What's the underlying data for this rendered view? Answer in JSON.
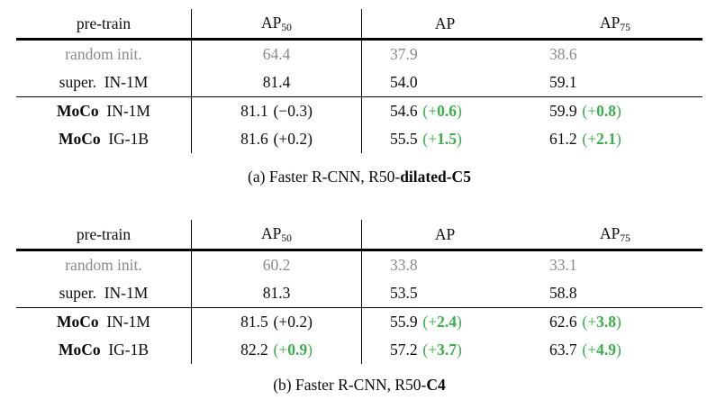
{
  "colors": {
    "green": "#3aae4c",
    "gray": "#8a8a8e",
    "rule": "#000000",
    "background": "#ffffff"
  },
  "header": {
    "pretrain": "pre-train",
    "ap50": {
      "base": "AP",
      "sub": "50"
    },
    "ap": {
      "base": "AP",
      "sub": ""
    },
    "ap75": {
      "base": "AP",
      "sub": "75"
    }
  },
  "tables": [
    {
      "id": "a",
      "caption": {
        "prefix": "(a) Faster R-CNN, R50-",
        "bold": "dilated-C5"
      },
      "rows": [
        {
          "label": {
            "bold": "",
            "rest": "random init."
          },
          "gray": true,
          "group_rule": false,
          "cells": [
            {
              "v": "64.4"
            },
            {
              "v": "37.9"
            },
            {
              "v": "38.6"
            }
          ]
        },
        {
          "label": {
            "bold": "",
            "rest": "super. IN-1M"
          },
          "gray": false,
          "group_rule": false,
          "cells": [
            {
              "v": "81.4"
            },
            {
              "v": "54.0"
            },
            {
              "v": "59.1"
            }
          ]
        },
        {
          "label": {
            "bold": "MoCo",
            "rest": " IN-1M"
          },
          "gray": false,
          "group_rule": true,
          "cells": [
            {
              "v": "81.1",
              "sign": "−",
              "delta": "0.3",
              "green": false
            },
            {
              "v": "54.6",
              "sign": "+",
              "delta": "0.6",
              "green": true
            },
            {
              "v": "59.9",
              "sign": "+",
              "delta": "0.8",
              "green": true
            }
          ]
        },
        {
          "label": {
            "bold": "MoCo",
            "rest": " IG-1B"
          },
          "gray": false,
          "group_rule": false,
          "cells": [
            {
              "v": "81.6",
              "sign": "+",
              "delta": "0.2",
              "green": false
            },
            {
              "v": "55.5",
              "sign": "+",
              "delta": "1.5",
              "green": true
            },
            {
              "v": "61.2",
              "sign": "+",
              "delta": "2.1",
              "green": true
            }
          ]
        }
      ]
    },
    {
      "id": "b",
      "caption": {
        "prefix": "(b) Faster R-CNN, R50-",
        "bold": "C4"
      },
      "rows": [
        {
          "label": {
            "bold": "",
            "rest": "random init."
          },
          "gray": true,
          "group_rule": false,
          "cells": [
            {
              "v": "60.2"
            },
            {
              "v": "33.8"
            },
            {
              "v": "33.1"
            }
          ]
        },
        {
          "label": {
            "bold": "",
            "rest": "super. IN-1M"
          },
          "gray": false,
          "group_rule": false,
          "cells": [
            {
              "v": "81.3"
            },
            {
              "v": "53.5"
            },
            {
              "v": "58.8"
            }
          ]
        },
        {
          "label": {
            "bold": "MoCo",
            "rest": " IN-1M"
          },
          "gray": false,
          "group_rule": true,
          "cells": [
            {
              "v": "81.5",
              "sign": "+",
              "delta": "0.2",
              "green": false
            },
            {
              "v": "55.9",
              "sign": "+",
              "delta": "2.4",
              "green": true
            },
            {
              "v": "62.6",
              "sign": "+",
              "delta": "3.8",
              "green": true
            }
          ]
        },
        {
          "label": {
            "bold": "MoCo",
            "rest": " IG-1B"
          },
          "gray": false,
          "group_rule": false,
          "cells": [
            {
              "v": "82.2",
              "sign": "+",
              "delta": "0.9",
              "green": true
            },
            {
              "v": "57.2",
              "sign": "+",
              "delta": "3.7",
              "green": true
            },
            {
              "v": "63.7",
              "sign": "+",
              "delta": "4.9",
              "green": true
            }
          ]
        }
      ]
    }
  ]
}
